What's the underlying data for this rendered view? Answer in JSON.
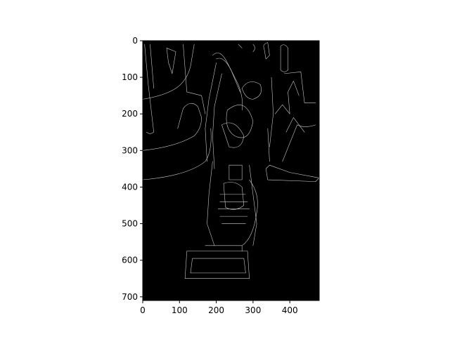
{
  "chart_data": {
    "type": "image",
    "description_kind": "grayscale edge-detection image displayed with imshow",
    "image_width": 480,
    "image_height": 710,
    "xlim": [
      0,
      480
    ],
    "ylim": [
      710,
      0
    ],
    "x_ticks": [
      0,
      100,
      200,
      300,
      400
    ],
    "y_ticks": [
      0,
      100,
      200,
      300,
      400,
      500,
      600,
      700
    ],
    "x_tick_labels": [
      "0",
      "100",
      "200",
      "300",
      "400"
    ],
    "y_tick_labels": [
      "0",
      "100",
      "200",
      "300",
      "400",
      "500",
      "600",
      "700"
    ],
    "title": "",
    "xlabel": "",
    "ylabel": "",
    "colors": {
      "background": "#000000",
      "edges": "#cfcfcf",
      "axes": "#000000"
    }
  }
}
